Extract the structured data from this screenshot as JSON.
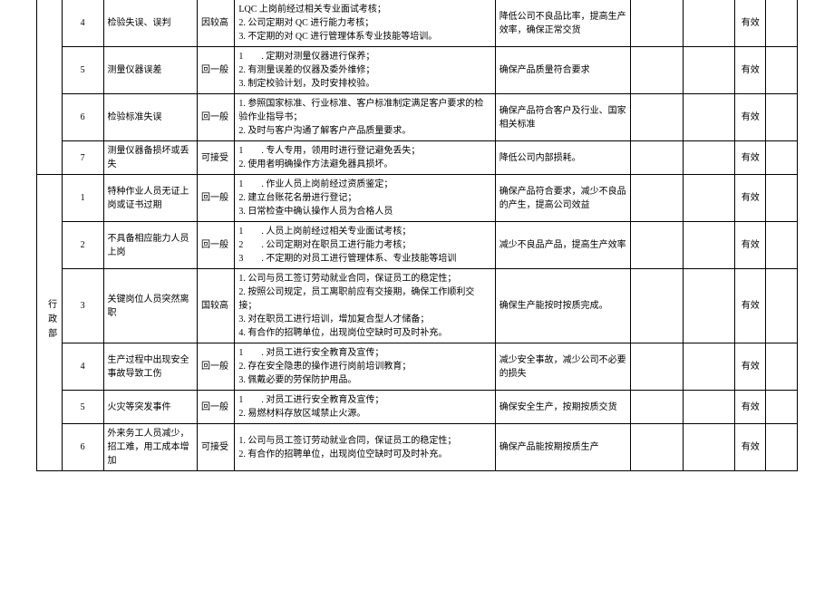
{
  "colors": {
    "border": "#000000",
    "bg": "#ffffff",
    "text": "#000000"
  },
  "font": {
    "family": "SimSun",
    "size_pt": 8
  },
  "columns": {
    "dept_w": 24,
    "num_w": 40,
    "risk_w": 90,
    "level_w": 36,
    "action_w": 250,
    "goal_w": 130,
    "blank1_w": 50,
    "blank2_w": 50,
    "eff_w": 30,
    "blank3_w": 30
  },
  "dept1_label": "",
  "dept2_label": "行政部",
  "effective": "有效",
  "group1": [
    {
      "num": "4",
      "risk": "检验失误、误判",
      "level": "因较高",
      "action": "LQC 上岗前经过相关专业面试考核；\n2. 公司定期对 QC 进行能力考核；\n3. 不定期的对 QC 进行管理体系专业技能等培训。",
      "goal": "降低公司不良品比率，提高生产效率，确保正常交货"
    },
    {
      "num": "5",
      "risk": "测量仪器误差",
      "level": "回一般",
      "action": "1　　. 定期对测量仪器进行保养；\n2. 有测量误差的仪器及委外维修；\n3. 制定校验计划，及时安排校验。",
      "goal": "确保产品质量符合要求"
    },
    {
      "num": "6",
      "risk": "检验标准失误",
      "level": "回一般",
      "action": "1. 参照国家标准、行业标准、客户标准制定满足客户要求的检验作业指导书；\n2. 及时与客户沟通了解客户产品质量要求。",
      "goal": "确保产品符合客户及行业、国家相关标准"
    },
    {
      "num": "7",
      "risk": "测量仪器备损坏或丢失",
      "level": "可接受",
      "action": "1　　. 专人专用，领用时进行登记避免丢失；\n2. 使用者明确操作方法避免器具损坏。",
      "goal": "降低公司内部损耗。"
    }
  ],
  "group2": [
    {
      "num": "1",
      "risk": "特种作业人员无证上岗或证书过期",
      "level": "回一般",
      "action": "1　　. 作业人员上岗前经过资质鉴定；\n2. 建立台账花名册进行登记；\n3. 日常检查中确认操作人员为合格人员",
      "goal": "确保产品符合要求，减少不良品的产生，提高公司效益"
    },
    {
      "num": "2",
      "risk": "不具备相应能力人员上岗",
      "level": "回一般",
      "action": "1　　. 人员上岗前经过相关专业面试考核；\n2　　. 公司定期对在职员工进行能力考核；\n3　　. 不定期的对员工进行管理体系、专业技能等培训",
      "goal": "减少不良品产品，提高生产效率"
    },
    {
      "num": "3",
      "risk": "关键岗位人员突然离职",
      "level": "国较高",
      "action": "1. 公司与员工签订劳动就业合同，保证员工的稳定性；\n2. 按照公司规定，员工离职前应有交接期，确保工作顺利交接；\n3. 对在职员工进行培训，增加复合型人才储备；\n4. 有合作的招聘单位，出现岗位空缺时可及时补充。",
      "goal": "确保生产能按时按质完成。"
    },
    {
      "num": "4",
      "risk": "生产过程中出现安全事故导致工伤",
      "level": "回一般",
      "action": "1　　. 对员工进行安全教育及宣传；\n2. 存在安全隐患的操作进行岗前培训教育；\n3. 佩戴必要的劳保防护用品。",
      "goal": "减少安全事故，减少公司不必要的损失"
    },
    {
      "num": "5",
      "risk": "火灾等突发事件",
      "level": "回一般",
      "action": "1　　. 对员工进行安全教育及宣传；\n2. 易燃材料存放区域禁止火源。",
      "goal": "确保安全生产，按期按质交货"
    },
    {
      "num": "6",
      "risk": "外来务工人员减少，招工难，用工成本增加",
      "level": "可接受",
      "action": "1. 公司与员工签订劳动就业合同，保证员工的稳定性；\n2. 有合作的招聘单位，出现岗位空缺时可及时补充。",
      "goal": "确保产品能按期按质生产"
    }
  ]
}
